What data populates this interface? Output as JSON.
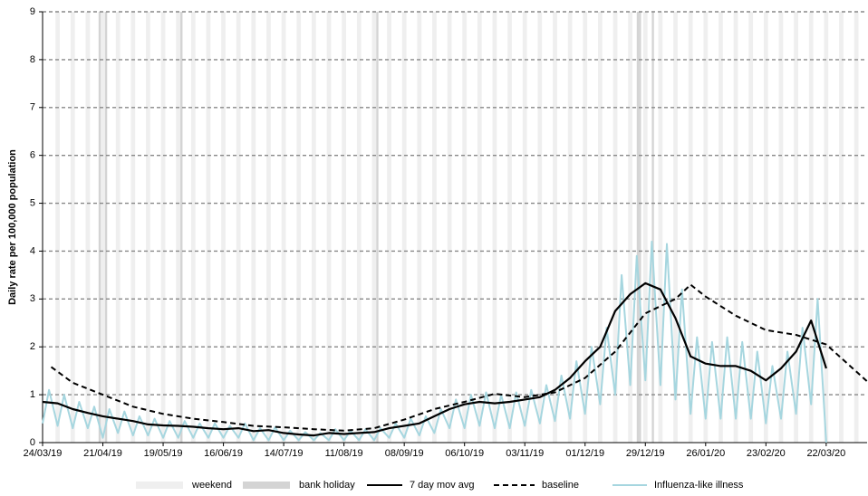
{
  "chart_data": {
    "type": "line",
    "y_label": "Daily rate per 100,000 population",
    "xlim": [
      "2019-03-24",
      "2020-04-10"
    ],
    "xticks": [
      {
        "value": "2019-03-24",
        "label": "24/03/19"
      },
      {
        "value": "2019-04-21",
        "label": "21/04/19"
      },
      {
        "value": "2019-05-19",
        "label": "19/05/19"
      },
      {
        "value": "2019-06-16",
        "label": "16/06/19"
      },
      {
        "value": "2019-07-14",
        "label": "14/07/19"
      },
      {
        "value": "2019-08-11",
        "label": "11/08/19"
      },
      {
        "value": "2019-09-08",
        "label": "08/09/19"
      },
      {
        "value": "2019-10-06",
        "label": "06/10/19"
      },
      {
        "value": "2019-11-03",
        "label": "03/11/19"
      },
      {
        "value": "2019-12-01",
        "label": "01/12/19"
      },
      {
        "value": "2019-12-29",
        "label": "29/12/19"
      },
      {
        "value": "2020-01-26",
        "label": "26/01/20"
      },
      {
        "value": "2020-02-23",
        "label": "23/02/20"
      },
      {
        "value": "2020-03-22",
        "label": "22/03/20"
      }
    ],
    "ylim": [
      0,
      9
    ],
    "yticks": [
      0,
      1,
      2,
      3,
      4,
      5,
      6,
      7,
      8,
      9
    ],
    "grid": true,
    "weekend_label": "weekend",
    "weekend_color": "#efefef",
    "bank_holiday_label": "bank holiday",
    "bank_holiday_color": "#d4d4d4",
    "bank_holidays": [
      "2019-04-19",
      "2019-04-22",
      "2019-05-27",
      "2019-08-26",
      "2019-12-25",
      "2019-12-26",
      "2020-01-01"
    ],
    "series": [
      {
        "name": "Influenza-like illness",
        "color": "#a6d6df",
        "dash": false,
        "x": [
          "2019-03-24",
          "2019-03-27",
          "2019-03-31",
          "2019-04-03",
          "2019-04-07",
          "2019-04-10",
          "2019-04-14",
          "2019-04-17",
          "2019-04-21",
          "2019-04-24",
          "2019-04-28",
          "2019-05-01",
          "2019-05-05",
          "2019-05-08",
          "2019-05-12",
          "2019-05-15",
          "2019-05-19",
          "2019-05-22",
          "2019-05-26",
          "2019-05-29",
          "2019-06-02",
          "2019-06-05",
          "2019-06-09",
          "2019-06-12",
          "2019-06-16",
          "2019-06-19",
          "2019-06-23",
          "2019-06-26",
          "2019-06-30",
          "2019-07-03",
          "2019-07-07",
          "2019-07-10",
          "2019-07-14",
          "2019-07-17",
          "2019-07-21",
          "2019-07-24",
          "2019-07-28",
          "2019-07-31",
          "2019-08-04",
          "2019-08-07",
          "2019-08-11",
          "2019-08-14",
          "2019-08-18",
          "2019-08-21",
          "2019-08-25",
          "2019-08-28",
          "2019-09-01",
          "2019-09-04",
          "2019-09-08",
          "2019-09-11",
          "2019-09-15",
          "2019-09-18",
          "2019-09-22",
          "2019-09-25",
          "2019-09-29",
          "2019-10-02",
          "2019-10-06",
          "2019-10-09",
          "2019-10-13",
          "2019-10-16",
          "2019-10-20",
          "2019-10-23",
          "2019-10-27",
          "2019-10-30",
          "2019-11-03",
          "2019-11-06",
          "2019-11-10",
          "2019-11-13",
          "2019-11-17",
          "2019-11-20",
          "2019-11-24",
          "2019-11-27",
          "2019-12-01",
          "2019-12-04",
          "2019-12-08",
          "2019-12-11",
          "2019-12-15",
          "2019-12-18",
          "2019-12-22",
          "2019-12-25",
          "2019-12-29",
          "2020-01-01",
          "2020-01-05",
          "2020-01-08",
          "2020-01-12",
          "2020-01-15",
          "2020-01-19",
          "2020-01-22",
          "2020-01-26",
          "2020-01-29",
          "2020-02-02",
          "2020-02-05",
          "2020-02-09",
          "2020-02-12",
          "2020-02-16",
          "2020-02-19",
          "2020-02-23",
          "2020-02-26",
          "2020-03-01",
          "2020-03-04",
          "2020-03-08",
          "2020-03-11",
          "2020-03-15",
          "2020-03-18",
          "2020-03-22"
        ],
        "values": [
          0.4,
          1.1,
          0.35,
          1.0,
          0.3,
          0.85,
          0.3,
          0.75,
          0.1,
          0.7,
          0.2,
          0.65,
          0.15,
          0.55,
          0.15,
          0.5,
          0.1,
          0.45,
          0.1,
          0.45,
          0.1,
          0.4,
          0.1,
          0.4,
          0.1,
          0.35,
          0.1,
          0.4,
          0.05,
          0.3,
          0.05,
          0.32,
          0.05,
          0.25,
          0.05,
          0.22,
          0.05,
          0.2,
          0.05,
          0.28,
          0.05,
          0.25,
          0.05,
          0.28,
          0.05,
          0.3,
          0.1,
          0.4,
          0.1,
          0.5,
          0.15,
          0.55,
          0.2,
          0.7,
          0.3,
          0.9,
          0.3,
          1.0,
          0.35,
          1.05,
          0.3,
          1.0,
          0.3,
          1.05,
          0.35,
          1.1,
          0.4,
          1.2,
          0.45,
          1.4,
          0.5,
          1.7,
          0.6,
          2.0,
          0.8,
          2.4,
          1.0,
          3.5,
          1.2,
          3.9,
          1.3,
          4.2,
          1.2,
          4.15,
          0.9,
          3.2,
          0.6,
          2.2,
          0.5,
          2.1,
          0.5,
          2.2,
          0.5,
          2.1,
          0.5,
          1.9,
          0.4,
          1.6,
          0.5,
          1.9,
          0.6,
          2.4,
          0.8,
          3.0,
          0.0
        ]
      },
      {
        "name": "7 day mov avg",
        "color": "#000000",
        "dash": false,
        "x": [
          "2019-03-24",
          "2019-03-31",
          "2019-04-07",
          "2019-04-14",
          "2019-04-21",
          "2019-04-28",
          "2019-05-05",
          "2019-05-12",
          "2019-05-19",
          "2019-05-26",
          "2019-06-02",
          "2019-06-09",
          "2019-06-16",
          "2019-06-23",
          "2019-06-30",
          "2019-07-07",
          "2019-07-14",
          "2019-07-21",
          "2019-07-28",
          "2019-08-04",
          "2019-08-11",
          "2019-08-18",
          "2019-08-25",
          "2019-09-01",
          "2019-09-08",
          "2019-09-15",
          "2019-09-22",
          "2019-09-29",
          "2019-10-06",
          "2019-10-13",
          "2019-10-20",
          "2019-10-27",
          "2019-11-03",
          "2019-11-10",
          "2019-11-17",
          "2019-11-24",
          "2019-12-01",
          "2019-12-08",
          "2019-12-15",
          "2019-12-22",
          "2019-12-29",
          "2020-01-05",
          "2020-01-12",
          "2020-01-19",
          "2020-01-26",
          "2020-02-02",
          "2020-02-09",
          "2020-02-16",
          "2020-02-23",
          "2020-03-01",
          "2020-03-08",
          "2020-03-15",
          "2020-03-22"
        ],
        "values": [
          0.85,
          0.82,
          0.7,
          0.62,
          0.55,
          0.5,
          0.45,
          0.38,
          0.36,
          0.35,
          0.33,
          0.3,
          0.28,
          0.3,
          0.24,
          0.26,
          0.2,
          0.17,
          0.15,
          0.2,
          0.18,
          0.2,
          0.22,
          0.3,
          0.35,
          0.4,
          0.55,
          0.7,
          0.8,
          0.85,
          0.82,
          0.85,
          0.9,
          0.95,
          1.1,
          1.35,
          1.7,
          2.0,
          2.75,
          3.1,
          3.33,
          3.2,
          2.6,
          1.8,
          1.65,
          1.6,
          1.6,
          1.5,
          1.3,
          1.55,
          1.9,
          2.55,
          1.55
        ]
      },
      {
        "name": "baseline",
        "color": "#000000",
        "dash": true,
        "x": [
          "2019-03-28",
          "2019-04-07",
          "2019-04-21",
          "2019-05-05",
          "2019-05-19",
          "2019-06-02",
          "2019-06-16",
          "2019-06-30",
          "2019-07-14",
          "2019-07-28",
          "2019-08-11",
          "2019-08-25",
          "2019-09-08",
          "2019-09-22",
          "2019-10-06",
          "2019-10-20",
          "2019-11-03",
          "2019-11-17",
          "2019-12-01",
          "2019-12-15",
          "2019-12-29",
          "2020-01-12",
          "2020-01-19",
          "2020-01-26",
          "2020-02-09",
          "2020-02-23",
          "2020-03-08",
          "2020-03-22",
          "2020-04-10"
        ],
        "values": [
          1.58,
          1.25,
          1.0,
          0.75,
          0.6,
          0.5,
          0.43,
          0.35,
          0.32,
          0.28,
          0.25,
          0.3,
          0.48,
          0.7,
          0.85,
          1.02,
          0.95,
          1.05,
          1.35,
          1.9,
          2.7,
          3.0,
          3.3,
          3.05,
          2.65,
          2.35,
          2.25,
          2.05,
          1.28
        ]
      }
    ]
  }
}
